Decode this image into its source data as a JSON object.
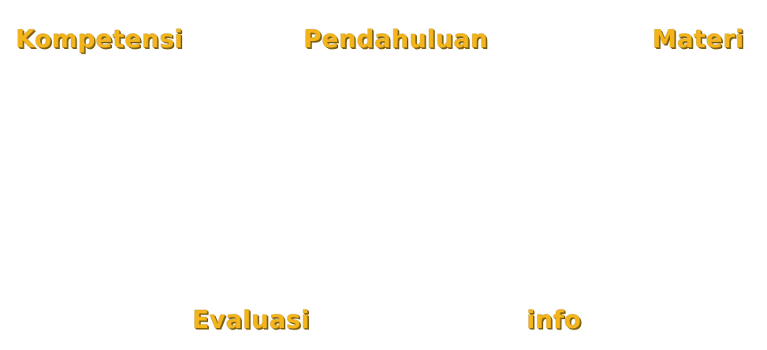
{
  "nav": {
    "kompetensi": "Kompetensi",
    "pendahuluan": "Pendahuluan",
    "materi": "Materi",
    "evaluasi": "Evaluasi",
    "info": "info"
  },
  "colors": {
    "label": "#f3b41c",
    "label_shadow": "#7a5c0e",
    "background": "#ffffff"
  }
}
